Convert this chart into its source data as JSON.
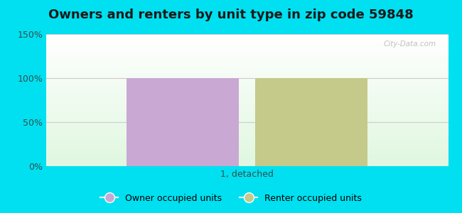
{
  "title": "Owners and renters by unit type in zip code 59848",
  "categories": [
    "1, detached"
  ],
  "owner_values": [
    100
  ],
  "renter_values": [
    100
  ],
  "owner_color": "#c9a8d4",
  "renter_color": "#c5c98a",
  "ylim": [
    0,
    150
  ],
  "yticks": [
    0,
    50,
    100,
    150
  ],
  "ytick_labels": [
    "0%",
    "50%",
    "100%",
    "150%"
  ],
  "legend_owner": "Owner occupied units",
  "legend_renter": "Renter occupied units",
  "bg_color": "#00e0f0",
  "watermark": "City-Data.com",
  "bar_width": 0.28,
  "title_fontsize": 13,
  "axis_label_color": "#2f4f4f",
  "grid_color": "#cccccc"
}
